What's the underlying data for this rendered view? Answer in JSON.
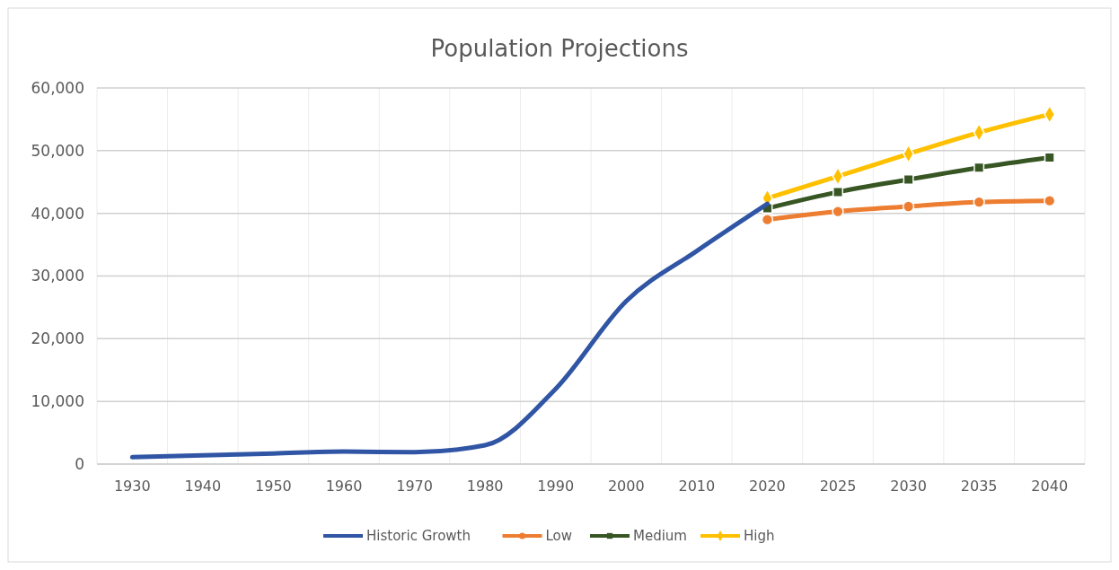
{
  "chart_data": {
    "type": "line",
    "title": "Population Projections",
    "categories": [
      "1930",
      "1940",
      "1950",
      "1960",
      "1970",
      "1980",
      "1990",
      "2000",
      "2010",
      "2020",
      "2025",
      "2030",
      "2035",
      "2040"
    ],
    "series": [
      {
        "name": "Historic Growth",
        "color": "#2f55a4",
        "marker": "none",
        "values": [
          1100,
          1400,
          1700,
          2000,
          1900,
          3000,
          12000,
          26000,
          34000,
          41500,
          null,
          null,
          null,
          null
        ]
      },
      {
        "name": "Low",
        "color": "#ed7d31",
        "marker": "circle",
        "values": [
          null,
          null,
          null,
          null,
          null,
          null,
          null,
          null,
          null,
          39000,
          40300,
          41100,
          41800,
          42000
        ]
      },
      {
        "name": "Medium",
        "color": "#375623",
        "marker": "square",
        "values": [
          null,
          null,
          null,
          null,
          null,
          null,
          null,
          null,
          null,
          40800,
          43400,
          45400,
          47300,
          48900
        ]
      },
      {
        "name": "High",
        "color": "#ffc000",
        "marker": "diamond",
        "values": [
          null,
          null,
          null,
          null,
          null,
          null,
          null,
          null,
          null,
          42400,
          45900,
          49500,
          52900,
          55800
        ]
      }
    ],
    "ylim": [
      0,
      60000
    ],
    "yticks": [
      {
        "value": 0,
        "label": "0"
      },
      {
        "value": 10000,
        "label": "10,000"
      },
      {
        "value": 20000,
        "label": "20,000"
      },
      {
        "value": 30000,
        "label": "30,000"
      },
      {
        "value": 40000,
        "label": "40,000"
      },
      {
        "value": 50000,
        "label": "50,000"
      },
      {
        "value": 60000,
        "label": "60,000"
      }
    ],
    "grid": true,
    "legend": "bottom"
  }
}
